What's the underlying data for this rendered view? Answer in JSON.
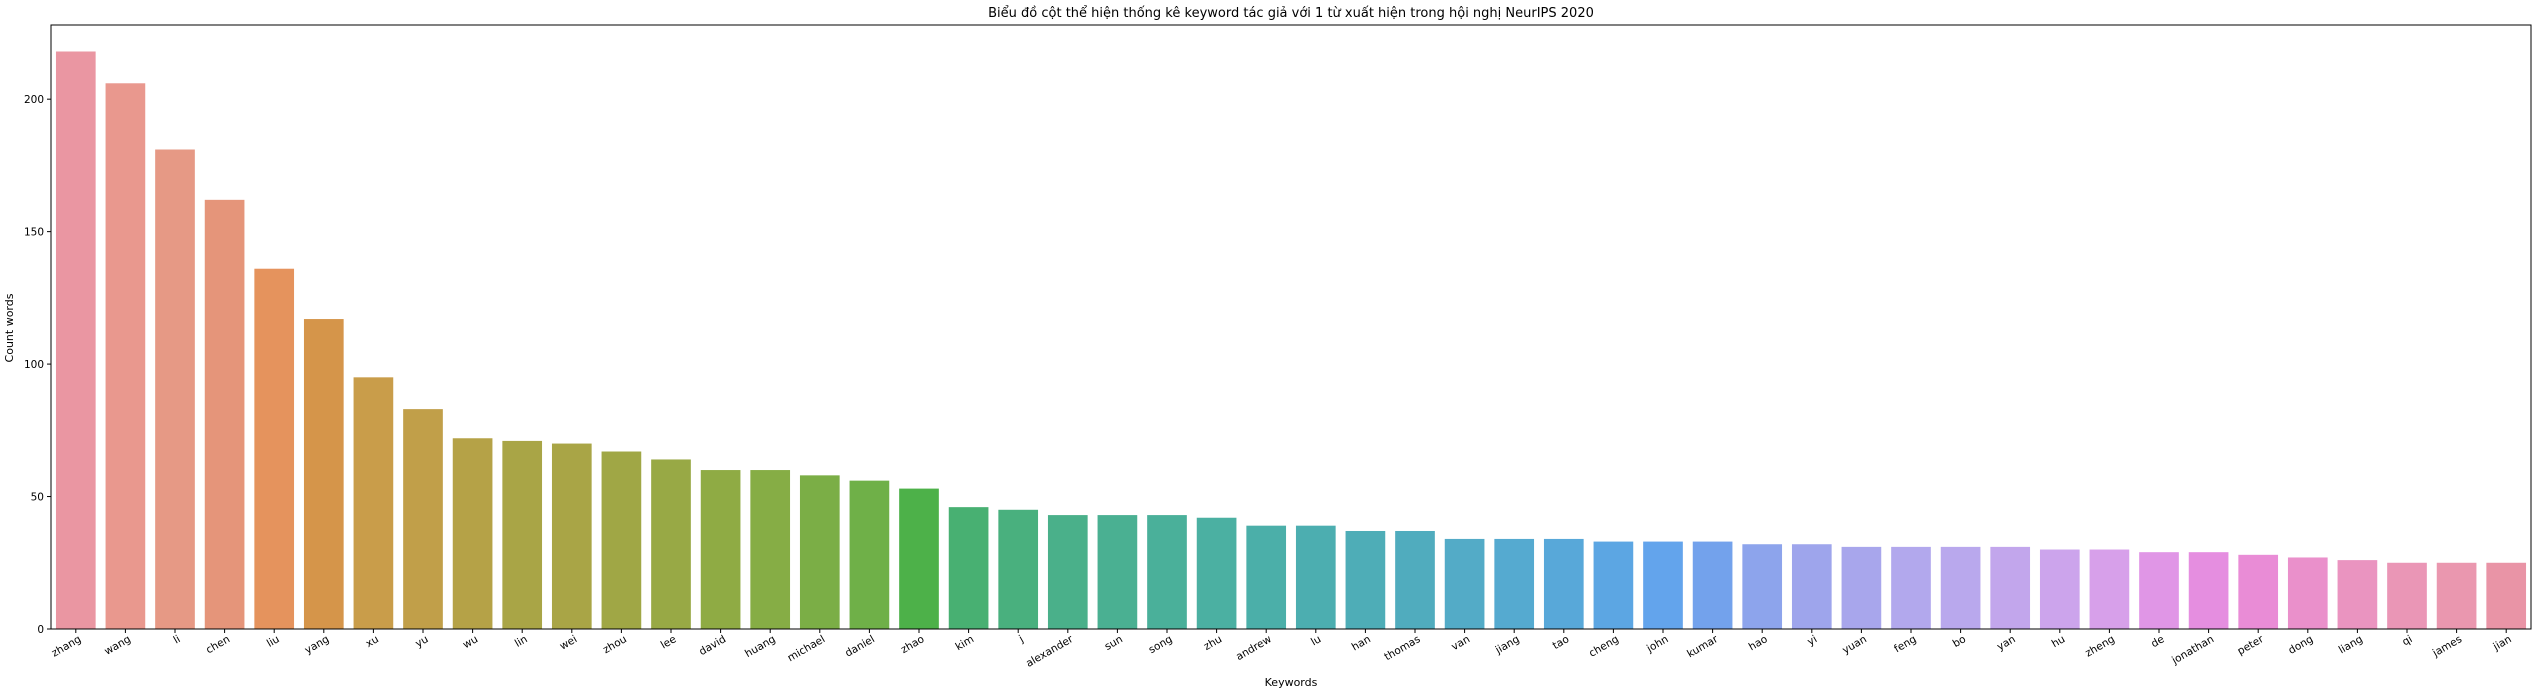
{
  "chart_data": {
    "type": "bar",
    "title": "Biểu đồ cột thể hiện thống kê keyword tác giả với 1 từ xuất hiện trong hội nghị NeurIPS 2020",
    "xlabel": "Keywords",
    "ylabel": "Count words",
    "ylim": [
      0,
      228
    ],
    "yticks": [
      0,
      50,
      100,
      150,
      200
    ],
    "grid": false,
    "categories": [
      "zhang",
      "wang",
      "li",
      "chen",
      "liu",
      "yang",
      "xu",
      "yu",
      "wu",
      "lin",
      "wei",
      "zhou",
      "lee",
      "david",
      "huang",
      "michael",
      "daniel",
      "zhao",
      "kim",
      "j",
      "alexander",
      "sun",
      "song",
      "zhu",
      "andrew",
      "lu",
      "han",
      "thomas",
      "van",
      "jiang",
      "tao",
      "cheng",
      "john",
      "kumar",
      "hao",
      "yi",
      "yuan",
      "feng",
      "bo",
      "yan",
      "hu",
      "zheng",
      "de",
      "jonathan",
      "peter",
      "dong",
      "liang",
      "qi",
      "james",
      "jian"
    ],
    "values": [
      218,
      206,
      181,
      162,
      136,
      117,
      95,
      83,
      72,
      71,
      70,
      67,
      64,
      60,
      60,
      58,
      56,
      53,
      46,
      45,
      43,
      43,
      43,
      42,
      39,
      39,
      37,
      37,
      34,
      34,
      34,
      33,
      33,
      33,
      32,
      32,
      31,
      31,
      31,
      31,
      30,
      30,
      29,
      29,
      28,
      27,
      26,
      25,
      25,
      25
    ],
    "colors": [
      "#ea96a2",
      "#e9988e",
      "#e69985",
      "#e5957a",
      "#e5935d",
      "#d5954a",
      "#c99d4a",
      "#c19f49",
      "#b5a247",
      "#a9a546",
      "#a9a546",
      "#a0a745",
      "#98a945",
      "#8fab44",
      "#86ad45",
      "#7bae46",
      "#6fb048",
      "#4db149",
      "#48b072",
      "#49b07e",
      "#4ab08a",
      "#4ab092",
      "#4ab09a",
      "#4bb0a2",
      "#4bafa9",
      "#4caeb0",
      "#4eadb7",
      "#50acbe",
      "#53abc7",
      "#55aad0",
      "#58a8d9",
      "#5ca6e3",
      "#63a4ec",
      "#73a2ec",
      "#8da4ec",
      "#9ea5ec",
      "#a8a6ec",
      "#b2a8ed",
      "#b9a8ed",
      "#c2a6ec",
      "#cca4ec",
      "#d7a0ea",
      "#e096e6",
      "#e58ee0",
      "#e98cd6",
      "#ea90cb",
      "#ea94c0",
      "#ea96b6",
      "#ea97af",
      "#e994a6"
    ]
  }
}
